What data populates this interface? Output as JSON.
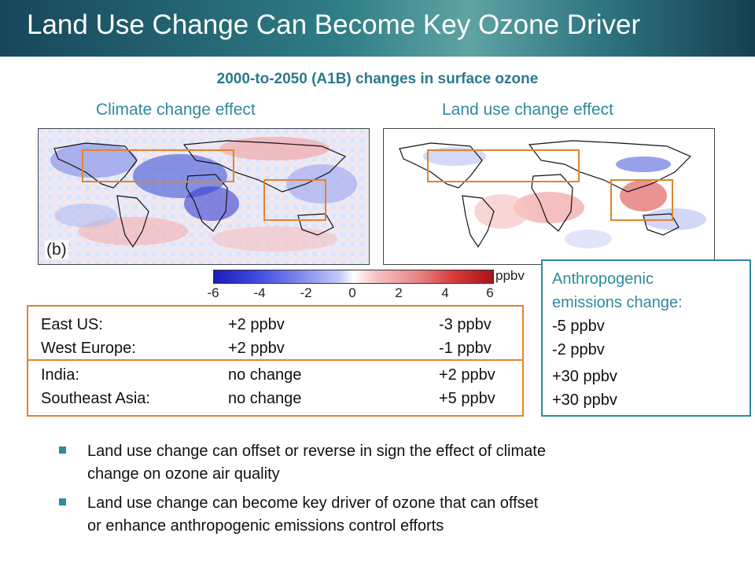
{
  "slide": {
    "title": "Land Use Change Can Become Key Ozone Driver",
    "subtitle": "2000-to-2050 (A1B) changes in surface ozone"
  },
  "panels": {
    "left_label": "Climate change effect",
    "right_label": "Land use change effect",
    "left_tag": "(b)"
  },
  "colorbar": {
    "ticks": [
      "-6",
      "-4",
      "-2",
      "0",
      "2",
      "4",
      "6"
    ],
    "unit": "ppbv"
  },
  "regions_table": {
    "rows": [
      {
        "region": "East US:",
        "climate": "+2 ppbv",
        "land_use": "-3 ppbv"
      },
      {
        "region": "West Europe:",
        "climate": "+2 ppbv",
        "land_use": "-1 ppbv"
      },
      {
        "region": "India:",
        "climate": "no change",
        "land_use": "+2 ppbv"
      },
      {
        "region": "Southeast Asia:",
        "climate": "no change",
        "land_use": "+5 ppbv"
      }
    ]
  },
  "anthropogenic": {
    "title_line1": "Anthropogenic",
    "title_line2": "emissions change:",
    "values": [
      "-5 ppbv",
      "-2 ppbv",
      "+30 ppbv",
      "+30 ppbv"
    ]
  },
  "bullets": [
    {
      "line1": "Land use change can offset or reverse in sign the effect of climate",
      "line2": "change on ozone air quality"
    },
    {
      "line1": "Land use change can become key driver of ozone that can offset",
      "line2": "or enhance anthropogenic emissions control efforts"
    }
  ],
  "colors": {
    "title_bar": "#2f7d86",
    "accent_teal": "#2f8a9c",
    "region_orange": "#e0842e"
  }
}
